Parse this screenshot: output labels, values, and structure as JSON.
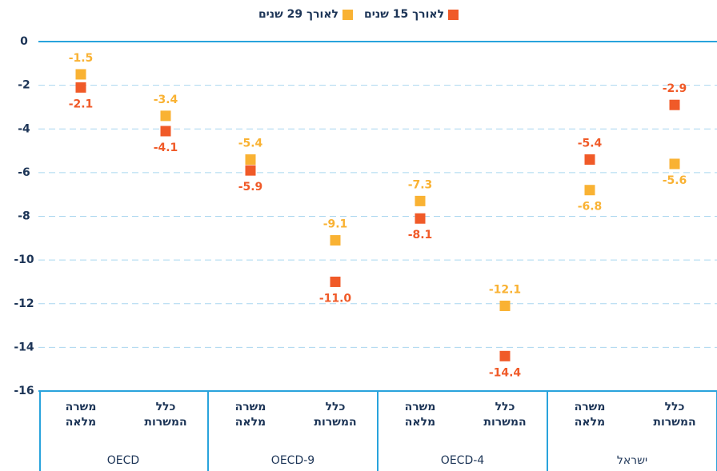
{
  "chart_data": {
    "type": "dot",
    "categories": [
      "משרה מלאה",
      "כלל המשרות",
      "משרה מלאה",
      "כלל המשרות",
      "משרה מלאה",
      "כלל המשרות",
      "משרה מלאה",
      "כלל המשרות"
    ],
    "groups": [
      "OECD",
      "OECD-9",
      "OECD-4",
      "ישראל"
    ],
    "series": [
      {
        "name": "לאורך 15 שנים",
        "color": "#f05a28",
        "values": [
          -2.1,
          -4.1,
          -5.9,
          -11.0,
          -8.1,
          -14.4,
          -5.4,
          -2.9
        ],
        "value_labels": [
          "-2.1",
          "-4.1",
          "-5.9",
          "-11.0",
          "-8.1",
          "-14.4",
          "-5.4",
          "-2.9"
        ]
      },
      {
        "name": "לאורך 29 שנים",
        "color": "#f9b233",
        "values": [
          -1.5,
          -3.4,
          -5.4,
          -9.1,
          -7.3,
          -12.1,
          -6.8,
          -5.6
        ],
        "value_labels": [
          "-1.5",
          "-3.4",
          "-5.4",
          "-9.1",
          "-7.3",
          "-12.1",
          "-6.8",
          "-5.6"
        ]
      }
    ],
    "ylim": [
      -16,
      0
    ],
    "yticks": [
      0,
      -2,
      -4,
      -6,
      -8,
      -10,
      -12,
      -14,
      -16
    ],
    "grid": true
  }
}
